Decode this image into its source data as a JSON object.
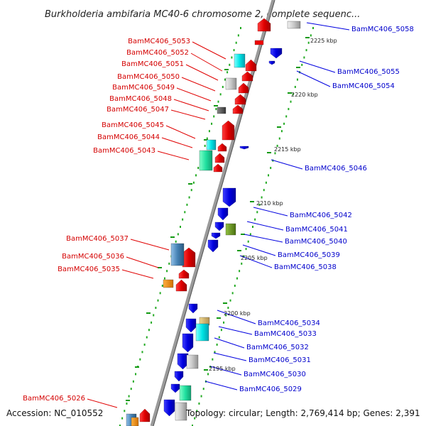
{
  "title": "Burkholderia ambifaria MC40-6 chromosome 2, complete sequenc...",
  "accession": "Accession: NC_010552",
  "footer_info": "Topology: circular; Length: 2,769,414 bp; Genes: 2,391",
  "ticks": [
    "2225 kbp",
    "2220 kbp",
    "2215 kbp",
    "2210 kbp",
    "2205 kbp",
    "2200 kbp",
    "2195 kbp"
  ],
  "left_labels": [
    "BamMC406_5053",
    "BamMC406_5052",
    "BamMC406_5051",
    "BamMC406_5050",
    "BamMC406_5049",
    "BamMC406_5048",
    "BamMC406_5047",
    "BamMC406_5045",
    "BamMC406_5044",
    "BamMC406_5043",
    "BamMC406_5037",
    "BamMC406_5036",
    "BamMC406_5035",
    "BamMC406_5026"
  ],
  "right_labels": [
    "BamMC406_5058",
    "BamMC406_5055",
    "BamMC406_5054",
    "BamMC406_5046",
    "BamMC406_5042",
    "BamMC406_5041",
    "BamMC406_5040",
    "BamMC406_5039",
    "BamMC406_5038",
    "BamMC406_5034",
    "BamMC406_5033",
    "BamMC406_5032",
    "BamMC406_5031",
    "BamMC406_5030",
    "BamMC406_5029"
  ],
  "colors": {
    "forward": "#e41a1c",
    "reverse": "#1a1ae4",
    "left_label": "#d40000",
    "right_label": "#0000cc",
    "backbone": "#888888",
    "cds": "#22aa22"
  }
}
